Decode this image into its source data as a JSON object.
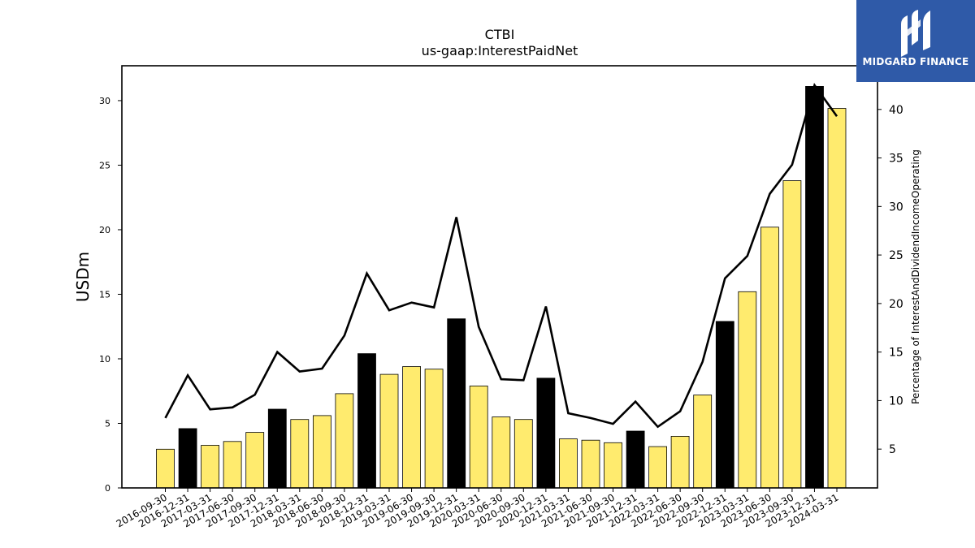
{
  "logo": {
    "text": "MIDGARD FINANCE",
    "icon": "midgard-m-logo-icon",
    "background": "#2f5aa8"
  },
  "chart_data": {
    "type": "bar",
    "title": "CTBI",
    "subtitle": "us-gaap:InterestPaidNet",
    "ylabel": "USDm",
    "y2label": "Percentage of InterestAndDividendIncomeOperating",
    "ylim": [
      0,
      32.7
    ],
    "y2lim": [
      1,
      44.5
    ],
    "yticks": [
      0,
      5,
      10,
      15,
      20,
      25,
      30
    ],
    "y2ticks": [
      5,
      10,
      15,
      20,
      25,
      30,
      35,
      40
    ],
    "categories": [
      "2016-09-30",
      "2016-12-31",
      "2017-03-31",
      "2017-06-30",
      "2017-09-30",
      "2017-12-31",
      "2018-03-31",
      "2018-06-30",
      "2018-09-30",
      "2018-12-31",
      "2019-03-31",
      "2019-06-30",
      "2019-09-30",
      "2019-12-31",
      "2020-03-31",
      "2020-06-30",
      "2020-09-30",
      "2020-12-31",
      "2021-03-31",
      "2021-06-30",
      "2021-09-30",
      "2021-12-31",
      "2022-03-31",
      "2022-06-30",
      "2022-09-30",
      "2022-12-31",
      "2023-03-31",
      "2023-06-30",
      "2023-09-30",
      "2023-12-31",
      "2024-03-31"
    ],
    "series": [
      {
        "type": "bar",
        "values": [
          3.0,
          4.6,
          3.3,
          3.6,
          4.3,
          6.1,
          5.3,
          5.6,
          7.3,
          10.4,
          8.8,
          9.4,
          9.2,
          13.1,
          7.9,
          5.5,
          5.3,
          8.5,
          3.8,
          3.7,
          3.5,
          4.4,
          3.2,
          4.0,
          7.2,
          12.9,
          15.2,
          20.2,
          23.8,
          31.1,
          29.4
        ],
        "colors": {
          "regular": "#ffeb6e",
          "year_end": "#000000"
        }
      },
      {
        "type": "line",
        "axis": "right",
        "values": [
          8.2,
          12.6,
          9.1,
          9.3,
          10.6,
          15.0,
          13.0,
          13.3,
          16.7,
          23.1,
          19.3,
          20.1,
          19.6,
          28.9,
          17.6,
          12.2,
          12.1,
          19.7,
          8.7,
          8.2,
          7.6,
          9.9,
          7.3,
          8.9,
          14.0,
          22.6,
          24.9,
          31.3,
          34.3,
          42.5,
          39.3
        ],
        "color": "#000000"
      }
    ]
  }
}
